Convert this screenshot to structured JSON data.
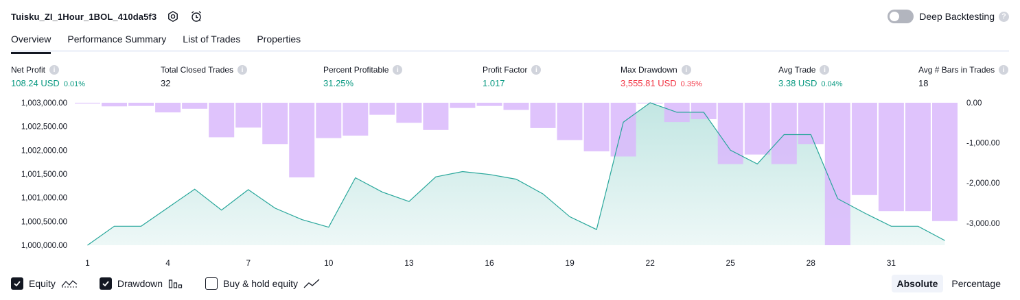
{
  "header": {
    "strategy_name": "Tuisku_ZI_1Hour_1BOL_410da5f3",
    "deep_backtesting_label": "Deep Backtesting"
  },
  "tabs": [
    {
      "label": "Overview",
      "active": true
    },
    {
      "label": "Performance Summary",
      "active": false
    },
    {
      "label": "List of Trades",
      "active": false
    },
    {
      "label": "Properties",
      "active": false
    }
  ],
  "metrics": {
    "net_profit": {
      "label": "Net Profit",
      "value": "108.24 USD",
      "pct": "0.01%"
    },
    "total_closed_trades": {
      "label": "Total Closed Trades",
      "value": "32"
    },
    "percent_profitable": {
      "label": "Percent Profitable",
      "value": "31.25%"
    },
    "profit_factor": {
      "label": "Profit Factor",
      "value": "1.017"
    },
    "max_drawdown": {
      "label": "Max Drawdown",
      "value": "3,555.81 USD",
      "pct": "0.35%"
    },
    "avg_trade": {
      "label": "Avg Trade",
      "value": "3.38 USD",
      "pct": "0.04%"
    },
    "avg_bars": {
      "label": "Avg # Bars in Trades",
      "value": "18"
    }
  },
  "colors": {
    "equity_line": "#26a69a",
    "drawdown_bar": "#d9b8fb",
    "positive": "#089981",
    "negative": "#f23645"
  },
  "legend": {
    "equity": {
      "label": "Equity",
      "checked": true
    },
    "drawdown": {
      "label": "Drawdown",
      "checked": true
    },
    "buy_hold": {
      "label": "Buy & hold equity",
      "checked": false
    }
  },
  "modes": {
    "absolute": "Absolute",
    "percentage": "Percentage",
    "selected": "absolute"
  },
  "chart_data": {
    "type": "area",
    "title": "",
    "x": [
      1,
      2,
      3,
      4,
      5,
      6,
      7,
      8,
      9,
      10,
      11,
      12,
      13,
      14,
      15,
      16,
      17,
      18,
      19,
      20,
      21,
      22,
      23,
      24,
      25,
      26,
      27,
      28,
      29,
      30,
      31,
      32,
      33
    ],
    "x_ticks": [
      1,
      4,
      7,
      10,
      13,
      16,
      19,
      22,
      25,
      28,
      31
    ],
    "left_axis": {
      "ylim": [
        1000000,
        1003000
      ],
      "ticks": [
        1000000,
        1000500,
        1001000,
        1001500,
        1002000,
        1002500,
        1003000
      ],
      "tick_labels": [
        "1,000,000.00",
        "1,000,500.00",
        "1,001,000.00",
        "1,001,500.00",
        "1,002,000.00",
        "1,002,500.00",
        "1,003,000.00"
      ]
    },
    "right_axis": {
      "ylim": [
        -3550,
        0
      ],
      "ticks": [
        0,
        -1000,
        -2000,
        -3000
      ],
      "tick_labels": [
        "0.00",
        "-1,000.00",
        "-2,000.00",
        "-3,000.00"
      ]
    },
    "series": [
      {
        "name": "Equity",
        "axis": "left",
        "values": [
          1000000,
          1000400,
          1000400,
          1000790,
          1001180,
          1000740,
          1001170,
          1000780,
          1000540,
          1000380,
          1001420,
          1001120,
          1000920,
          1001440,
          1001550,
          1001490,
          1001390,
          1001080,
          1000600,
          1000330,
          1002590,
          1003000,
          1002800,
          1002800,
          1002000,
          1001710,
          1002330,
          1002330,
          1000980,
          1000680,
          1000400,
          1000400,
          1000100
        ]
      },
      {
        "name": "Drawdown",
        "type": "bar",
        "axis": "right",
        "values": [
          -20,
          -90,
          -80,
          -240,
          -150,
          -860,
          -620,
          -1030,
          -1860,
          -880,
          -820,
          -300,
          -500,
          -680,
          -130,
          -80,
          -180,
          -630,
          -930,
          -1210,
          -1340,
          -20,
          -480,
          -410,
          -1530,
          -1290,
          -1530,
          -1030,
          -3550,
          -2300,
          -2700,
          -2700,
          -2950
        ]
      }
    ]
  }
}
